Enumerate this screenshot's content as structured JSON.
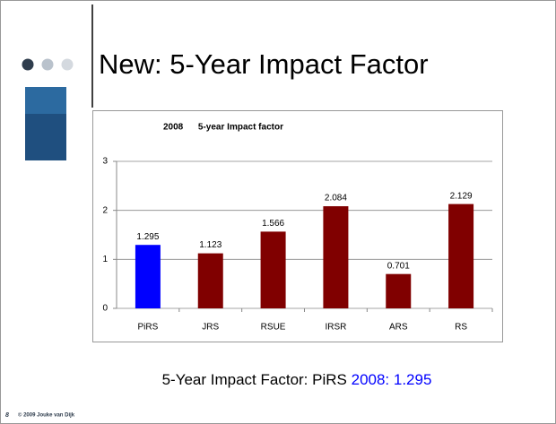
{
  "slide": {
    "title": "New: 5-Year Impact Factor",
    "caption_prefix": "5-Year Impact Factor: PiRS",
    "caption_highlight": "2008: 1.295",
    "page_number": "8",
    "copyright": "© 2009 Jouke van Dijk"
  },
  "chart_data": {
    "type": "bar",
    "title": "2008      5-year Impact factor",
    "categories": [
      "PiRS",
      "JRS",
      "RSUE",
      "IRSR",
      "ARS",
      "RS"
    ],
    "values": [
      1.295,
      1.123,
      1.566,
      2.084,
      0.701,
      2.129
    ],
    "colors": [
      "#0000ff",
      "#800000",
      "#800000",
      "#800000",
      "#800000",
      "#800000"
    ],
    "ylim": [
      0,
      3
    ],
    "yticks": [
      0,
      1,
      2,
      3
    ],
    "grid": true
  }
}
